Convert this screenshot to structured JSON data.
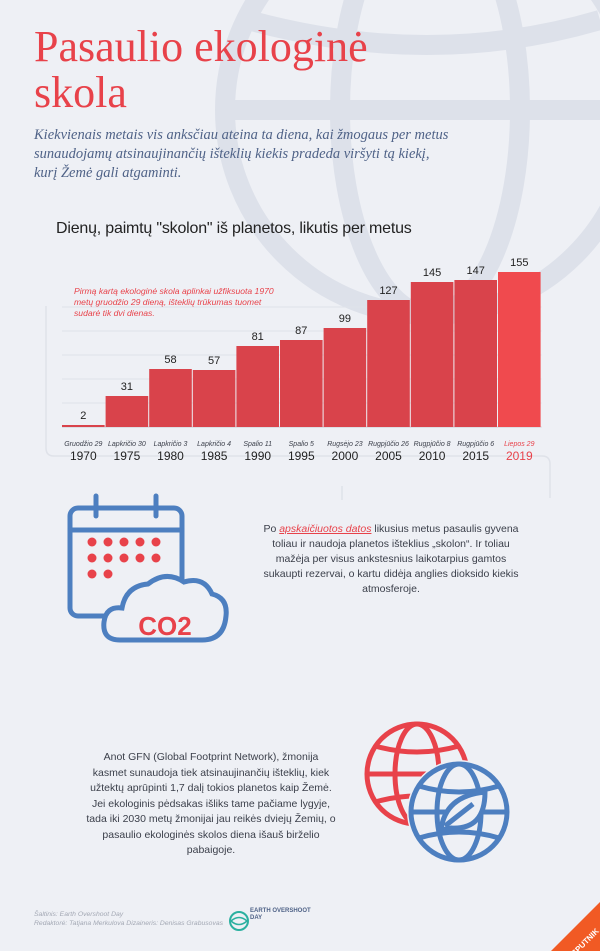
{
  "header": {
    "title": "Pasaulio ekologinė skola",
    "subtitle": "Kiekvienais metais vis anksčiau ateina ta diena, kai žmogaus per metus sunaudojamų atsinaujinančių išteklių kiekis pradeda viršyti tą kiekį, kurį Žemė gali atgaminti."
  },
  "chart_data": {
    "type": "bar",
    "title": "Dienų, paimtų \"skolon\" iš planetos, likutis per metus",
    "categories": [
      "1970",
      "1975",
      "1980",
      "1985",
      "1990",
      "1995",
      "2000",
      "2005",
      "2010",
      "2015",
      "2019"
    ],
    "dates": [
      "Gruodžio 29",
      "Lapkričio 30",
      "Lapkričio 3",
      "Lapkričio 4",
      "Spalio 11",
      "Spalio 5",
      "Rugsėjo 23",
      "Rugpjūčio 26",
      "Rugpjūčio 8",
      "Rugpjūčio 6",
      "Liepos 29"
    ],
    "values": [
      2,
      31,
      58,
      57,
      81,
      87,
      99,
      127,
      145,
      147,
      155
    ],
    "ylim": [
      0,
      160
    ],
    "grid": true,
    "highlight_last": true,
    "annotation": "Pirmą kartą ekologinė skola aplinkai užfiksuota 1970 metų gruodžio 29 dieną, išteklių trūkumas tuomet sudarė tik dvi dienas."
  },
  "co2_section": {
    "text_before": "Po ",
    "link": "apskaičiuotos datos",
    "text_after": " likusius metus pasaulis gyvena toliau ir naudoja planetos išteklius „skolon“. Ir toliau mažėja per visus ankstesnius laikotarpius gamtos sukaupti rezervai, o kartu didėja anglies dioksido kiekis atmosferoje.",
    "icon_label": "CO2"
  },
  "gfn_section": {
    "text": "Anot GFN (Global Footprint Network), žmonija kasmet sunaudoja tiek atsinaujinančių išteklių, kiek užtektų aprūpinti 1,7 dalį tokios planetos kaip Žemė. Jei ekologinis pėdsakas išliks tame pačiame lygyje, tada iki 2030 metų žmonijai jau reikės dviejų Žemių, o pasaulio ekologinės skolos diena išauš birželio pabaigoje."
  },
  "footer": {
    "source": "Šaltinis: Earth Overshoot Day",
    "editors": "Redaktorė: Tatjana Merkulova Dizaineris: Denisas Grabusovas",
    "eod_logo_text": "EARTH OVERSHOOT DAY",
    "sputnik_text": "SPUTNIK"
  },
  "colors": {
    "accent": "#e8424a",
    "bar": "#d9434b",
    "bar_highlight": "#f04a4e",
    "blue": "#4f6287"
  }
}
